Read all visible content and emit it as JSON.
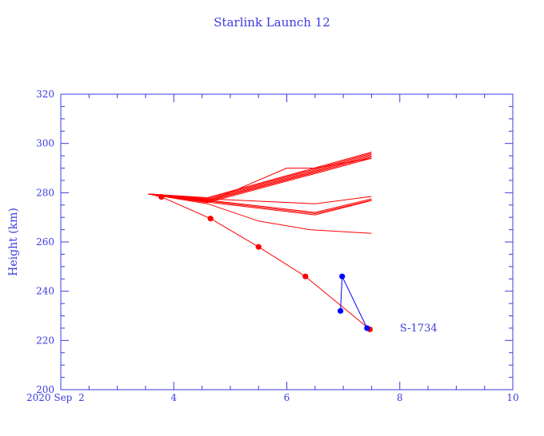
{
  "chart_data": {
    "type": "line",
    "title": "Starlink Launch 12",
    "xlabel": "",
    "ylabel": "Height (km)",
    "xlim": [
      2,
      10
    ],
    "ylim": [
      200,
      320
    ],
    "x_ticks": [
      {
        "value": 2,
        "label": "2020 Sep  2"
      },
      {
        "value": 4,
        "label": "4"
      },
      {
        "value": 6,
        "label": "6"
      },
      {
        "value": 8,
        "label": "8"
      },
      {
        "value": 10,
        "label": "10"
      }
    ],
    "y_ticks": [
      200,
      220,
      240,
      260,
      280,
      300,
      320
    ],
    "grid": false,
    "colors": {
      "axes": "#3b3be0",
      "tracks": "#ff0000",
      "highlight": "#0000ff"
    },
    "series": [
      {
        "color": "#ff0000",
        "points": [
          [
            3.55,
            279.5
          ],
          [
            4.6,
            278
          ],
          [
            7.5,
            296.5
          ]
        ]
      },
      {
        "color": "#ff0000",
        "points": [
          [
            3.55,
            279.5
          ],
          [
            4.6,
            277.6
          ],
          [
            7.5,
            296
          ]
        ]
      },
      {
        "color": "#ff0000",
        "points": [
          [
            3.55,
            279.5
          ],
          [
            4.6,
            277.2
          ],
          [
            7.5,
            295.5
          ]
        ]
      },
      {
        "color": "#ff0000",
        "points": [
          [
            3.55,
            279.5
          ],
          [
            4.6,
            276.8
          ],
          [
            7.5,
            295
          ]
        ]
      },
      {
        "color": "#ff0000",
        "points": [
          [
            3.55,
            279.5
          ],
          [
            4.6,
            276.4
          ],
          [
            7.5,
            294.5
          ]
        ]
      },
      {
        "color": "#ff0000",
        "points": [
          [
            3.55,
            279.5
          ],
          [
            4.6,
            276
          ],
          [
            7.5,
            294
          ]
        ]
      },
      {
        "color": "#ff0000",
        "points": [
          [
            3.55,
            279.5
          ],
          [
            4.6,
            276.2
          ],
          [
            6.0,
            290
          ],
          [
            6.5,
            290
          ],
          [
            7.5,
            294
          ]
        ]
      },
      {
        "color": "#ff0000",
        "points": [
          [
            3.55,
            279.5
          ],
          [
            4.6,
            277
          ],
          [
            6.5,
            272
          ],
          [
            7.5,
            277.5
          ]
        ]
      },
      {
        "color": "#ff0000",
        "points": [
          [
            3.55,
            279.5
          ],
          [
            4.6,
            276.6
          ],
          [
            6.5,
            271.5
          ],
          [
            7.5,
            277
          ]
        ]
      },
      {
        "color": "#ff0000",
        "points": [
          [
            3.55,
            279.5
          ],
          [
            4.6,
            276.2
          ],
          [
            6.5,
            271
          ],
          [
            7.5,
            276.8
          ]
        ]
      },
      {
        "color": "#ff0000",
        "points": [
          [
            3.55,
            279.5
          ],
          [
            4.6,
            277.5
          ],
          [
            6.5,
            275.5
          ],
          [
            7.5,
            278.5
          ]
        ]
      },
      {
        "color": "#ff0000",
        "points": [
          [
            3.55,
            279.5
          ],
          [
            4.6,
            275.5
          ],
          [
            5.5,
            268.5
          ],
          [
            6.4,
            265
          ],
          [
            7.5,
            263.5
          ]
        ]
      },
      {
        "name": "S-1734",
        "color": "#ff0000",
        "markers": true,
        "points": [
          [
            3.55,
            279.5
          ],
          [
            3.78,
            278.3
          ],
          [
            4.65,
            269.5
          ],
          [
            5.5,
            258
          ],
          [
            6.33,
            246
          ],
          [
            7.47,
            224.5
          ]
        ]
      },
      {
        "name": "S-1734",
        "color": "#0000ff",
        "markers": true,
        "points": [
          [
            6.95,
            232
          ],
          [
            6.98,
            246
          ],
          [
            7.42,
            225
          ]
        ]
      }
    ],
    "annotations": [
      {
        "text": "S-1734",
        "x": 8.0,
        "y": 225
      }
    ]
  }
}
